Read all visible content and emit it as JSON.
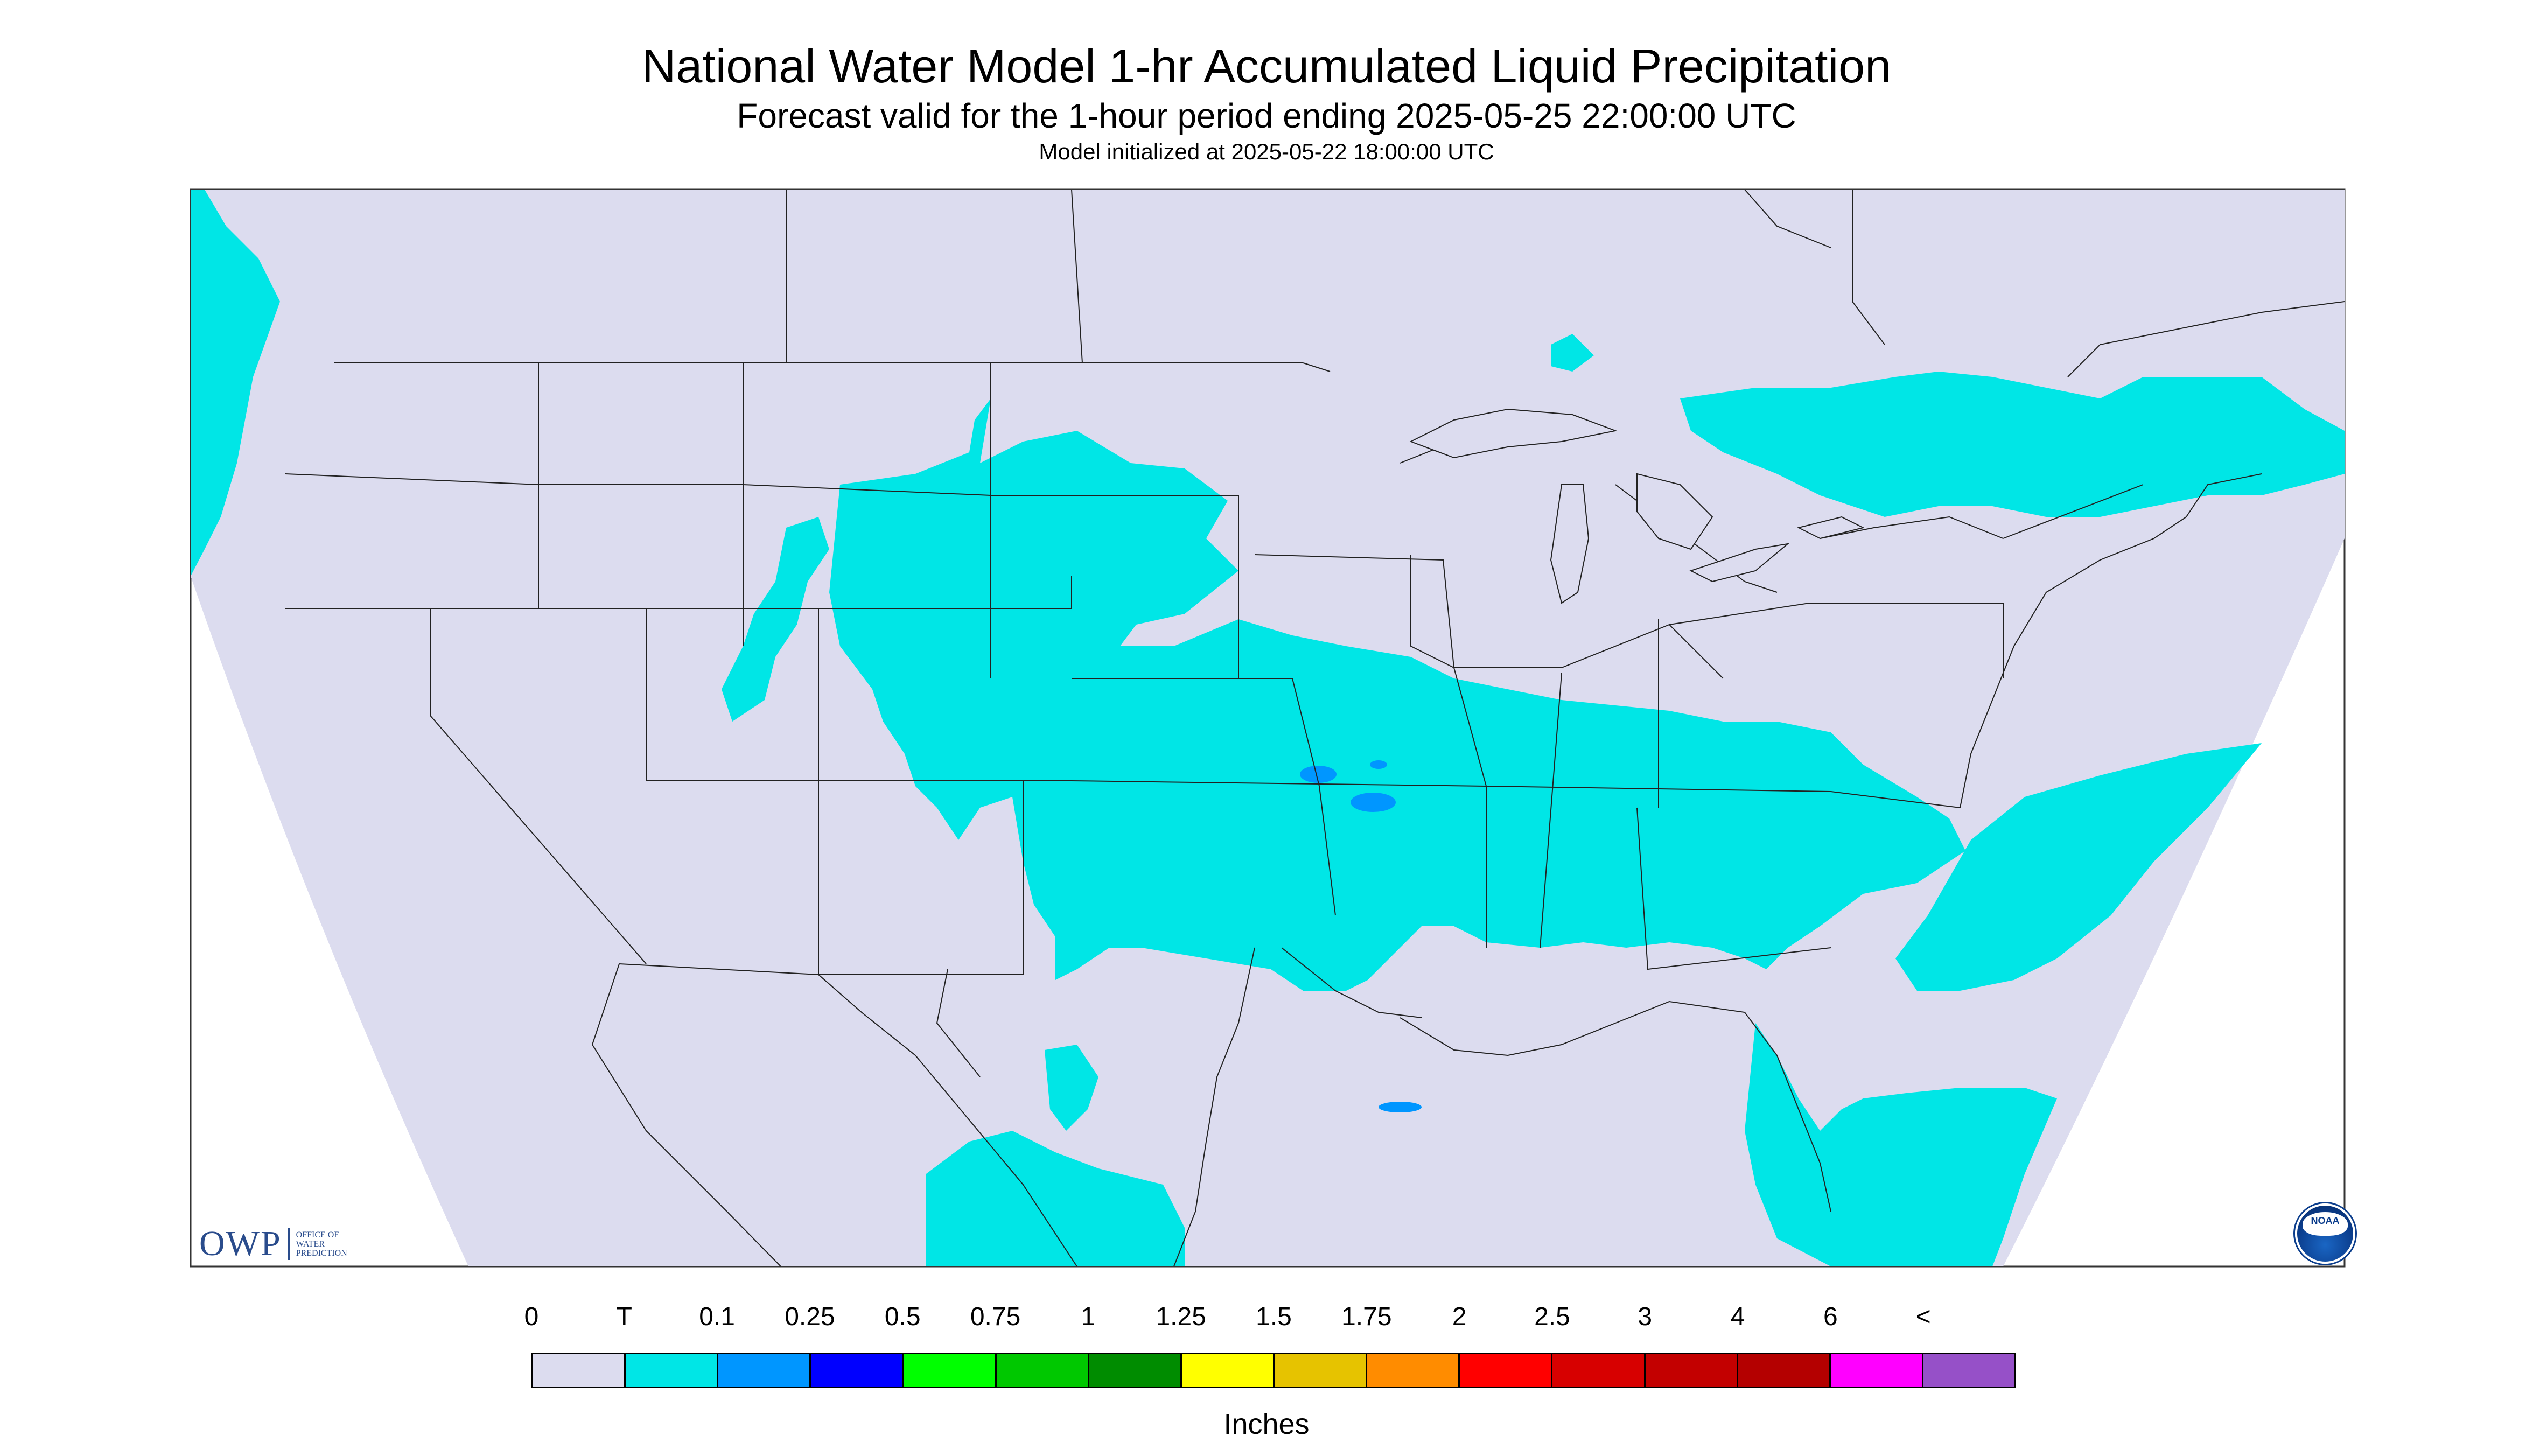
{
  "header": {
    "title": "National Water Model 1-hr Accumulated Liquid Precipitation",
    "subtitle": "Forecast valid for the 1-hour period ending 2025-05-25 22:00:00 UTC",
    "init": "Model initialized at 2025-05-22 18:00:00 UTC"
  },
  "map": {
    "background_color": "#dcdcef",
    "precip_trace_color": "#00e6e6",
    "precip_01_color": "#0096ff"
  },
  "legend": {
    "ticks": [
      "0",
      "T",
      "0.1",
      "0.25",
      "0.5",
      "0.75",
      "1",
      "1.25",
      "1.5",
      "1.75",
      "2",
      "2.5",
      "3",
      "4",
      "6",
      "<"
    ],
    "colors": [
      "#dcdcef",
      "#00e6e6",
      "#0096ff",
      "#0000ff",
      "#00ff00",
      "#00c800",
      "#008c00",
      "#ffff00",
      "#e6c300",
      "#ff8c00",
      "#ff0000",
      "#d70000",
      "#c30000",
      "#b40000",
      "#ff00ff",
      "#9650c8"
    ],
    "units": "Inches"
  },
  "logos": {
    "owp_mark": "OWP",
    "owp_text": "OFFICE OF\nWATER\nPREDICTION",
    "noaa_text": "NOAA"
  }
}
